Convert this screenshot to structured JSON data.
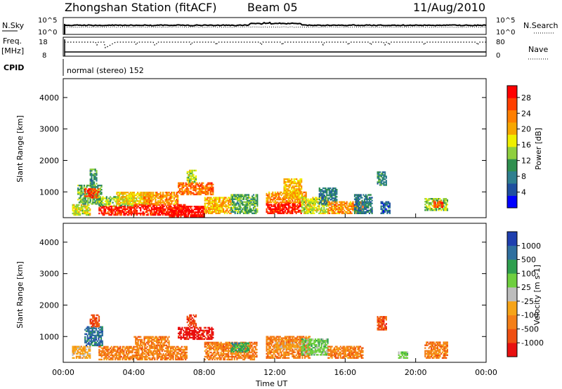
{
  "header": {
    "station": "Zhongshan Station (fitACF)",
    "beam": "Beam 05",
    "date": "11/Aug/2010"
  },
  "panels": {
    "nsky": {
      "label": "N.Sky",
      "scale_top": "10^5",
      "scale_bottom": "10^0",
      "right_label": "N.Search",
      "right_top": "10^5",
      "right_bottom": "10^0"
    },
    "freq": {
      "label_line1": "Freq.",
      "label_line2": "[MHz]",
      "left_top": "18",
      "left_bottom": "8",
      "right_top": "80",
      "right_bottom": "0",
      "right_label": "Nave"
    },
    "cpid": {
      "label": "CPID",
      "text": "normal (stereo) 152"
    }
  },
  "colors": {
    "power": [
      "#0000ff",
      "#1f4f9f",
      "#2f7f8f",
      "#2f8f4f",
      "#8fcf3f",
      "#efef00",
      "#f7a700",
      "#ff7f00",
      "#ff3f00",
      "#ff0000"
    ],
    "velocity": [
      "#e81010",
      "#ef4f12",
      "#f47f18",
      "#f6a418",
      "#bdbdbd",
      "#6fcf3f",
      "#2f9f4f",
      "#2f6f9f",
      "#1f3faf"
    ]
  },
  "chart_data": [
    {
      "type": "heatmap",
      "name": "power",
      "ylabel": "Slant Range [km]",
      "yticks": [
        "1000",
        "2000",
        "3000",
        "4000"
      ],
      "ylim": [
        180,
        4600
      ],
      "xlim": [
        0,
        24
      ],
      "colorbar": {
        "label": "Power [dB]",
        "ticks": [
          "4",
          "8",
          "12",
          "16",
          "20",
          "24",
          "28"
        ],
        "range": [
          0,
          31
        ]
      },
      "patches": [
        {
          "t": [
            0.5,
            1.5
          ],
          "r": [
            250,
            600
          ],
          "v": 16
        },
        {
          "t": [
            0.8,
            2.2
          ],
          "r": [
            600,
            1200
          ],
          "v": 12
        },
        {
          "t": [
            1.2,
            2.0
          ],
          "r": [
            800,
            1100
          ],
          "v": 26
        },
        {
          "t": [
            1.5,
            1.9
          ],
          "r": [
            1200,
            1700
          ],
          "v": 10
        },
        {
          "t": [
            2.0,
            4.0
          ],
          "r": [
            250,
            550
          ],
          "v": 28
        },
        {
          "t": [
            2.0,
            4.0
          ],
          "r": [
            550,
            850
          ],
          "v": 14
        },
        {
          "t": [
            3.0,
            5.0
          ],
          "r": [
            600,
            1000
          ],
          "v": 18
        },
        {
          "t": [
            4.0,
            7.0
          ],
          "r": [
            250,
            600
          ],
          "v": 28
        },
        {
          "t": [
            4.5,
            6.5
          ],
          "r": [
            600,
            1000
          ],
          "v": 22
        },
        {
          "t": [
            6.0,
            8.0
          ],
          "r": [
            200,
            520
          ],
          "v": 30
        },
        {
          "t": [
            6.5,
            8.5
          ],
          "r": [
            900,
            1300
          ],
          "v": 24
        },
        {
          "t": [
            7.0,
            7.5
          ],
          "r": [
            1300,
            1700
          ],
          "v": 16
        },
        {
          "t": [
            8.0,
            9.5
          ],
          "r": [
            300,
            800
          ],
          "v": 20
        },
        {
          "t": [
            9.5,
            11.0
          ],
          "r": [
            300,
            900
          ],
          "v": 12
        },
        {
          "t": [
            11.5,
            13.5
          ],
          "r": [
            300,
            650
          ],
          "v": 28
        },
        {
          "t": [
            11.5,
            13.8
          ],
          "r": [
            650,
            1000
          ],
          "v": 22
        },
        {
          "t": [
            12.5,
            13.5
          ],
          "r": [
            800,
            1400
          ],
          "v": 20
        },
        {
          "t": [
            13.5,
            15.0
          ],
          "r": [
            300,
            800
          ],
          "v": 16
        },
        {
          "t": [
            14.5,
            15.5
          ],
          "r": [
            600,
            1100
          ],
          "v": 8
        },
        {
          "t": [
            15.0,
            17.0
          ],
          "r": [
            300,
            700
          ],
          "v": 22
        },
        {
          "t": [
            16.5,
            17.5
          ],
          "r": [
            300,
            900
          ],
          "v": 8
        },
        {
          "t": [
            17.8,
            18.3
          ],
          "r": [
            1200,
            1650
          ],
          "v": 10
        },
        {
          "t": [
            18.0,
            18.5
          ],
          "r": [
            300,
            700
          ],
          "v": 6
        },
        {
          "t": [
            20.5,
            21.8
          ],
          "r": [
            400,
            800
          ],
          "v": 14
        },
        {
          "t": [
            21.0,
            21.5
          ],
          "r": [
            500,
            700
          ],
          "v": 26
        }
      ]
    },
    {
      "type": "heatmap",
      "name": "velocity",
      "ylabel": "Slant Range [km]",
      "yticks": [
        "1000",
        "2000",
        "3000",
        "4000"
      ],
      "ylim": [
        180,
        4600
      ],
      "xlim": [
        0,
        24
      ],
      "xticks": [
        "00:00",
        "04:00",
        "08:00",
        "12:00",
        "16:00",
        "20:00",
        "00:00"
      ],
      "xlabel": "Time UT",
      "colorbar": {
        "label": "Velocity [m s-1]",
        "ticks": [
          "-1000",
          "-500",
          "-100",
          "-25",
          "25",
          "100",
          "500",
          "1000"
        ],
        "levels": 9
      },
      "patches": [
        {
          "t": [
            0.5,
            1.5
          ],
          "r": [
            300,
            700
          ],
          "v": 3
        },
        {
          "t": [
            1.2,
            2.2
          ],
          "r": [
            700,
            1300
          ],
          "v": 7
        },
        {
          "t": [
            1.5,
            2.0
          ],
          "r": [
            1300,
            1700
          ],
          "v": 1
        },
        {
          "t": [
            2.0,
            7.0
          ],
          "r": [
            250,
            700
          ],
          "v": 2
        },
        {
          "t": [
            4.0,
            6.0
          ],
          "r": [
            700,
            1000
          ],
          "v": 2
        },
        {
          "t": [
            6.5,
            8.5
          ],
          "r": [
            900,
            1300
          ],
          "v": 0
        },
        {
          "t": [
            7.0,
            7.5
          ],
          "r": [
            1300,
            1700
          ],
          "v": 1
        },
        {
          "t": [
            8.0,
            11.0
          ],
          "r": [
            250,
            800
          ],
          "v": 2
        },
        {
          "t": [
            9.5,
            10.5
          ],
          "r": [
            500,
            800
          ],
          "v": 6
        },
        {
          "t": [
            11.5,
            14.0
          ],
          "r": [
            300,
            1000
          ],
          "v": 2
        },
        {
          "t": [
            12.0,
            13.5
          ],
          "r": [
            600,
            800
          ],
          "v": 3
        },
        {
          "t": [
            13.5,
            15.0
          ],
          "r": [
            400,
            900
          ],
          "v": 5
        },
        {
          "t": [
            15.0,
            17.0
          ],
          "r": [
            300,
            700
          ],
          "v": 2
        },
        {
          "t": [
            17.8,
            18.3
          ],
          "r": [
            1200,
            1650
          ],
          "v": 1
        },
        {
          "t": [
            19.0,
            19.5
          ],
          "r": [
            300,
            500
          ],
          "v": 5
        },
        {
          "t": [
            20.5,
            21.8
          ],
          "r": [
            300,
            800
          ],
          "v": 2
        }
      ]
    }
  ]
}
